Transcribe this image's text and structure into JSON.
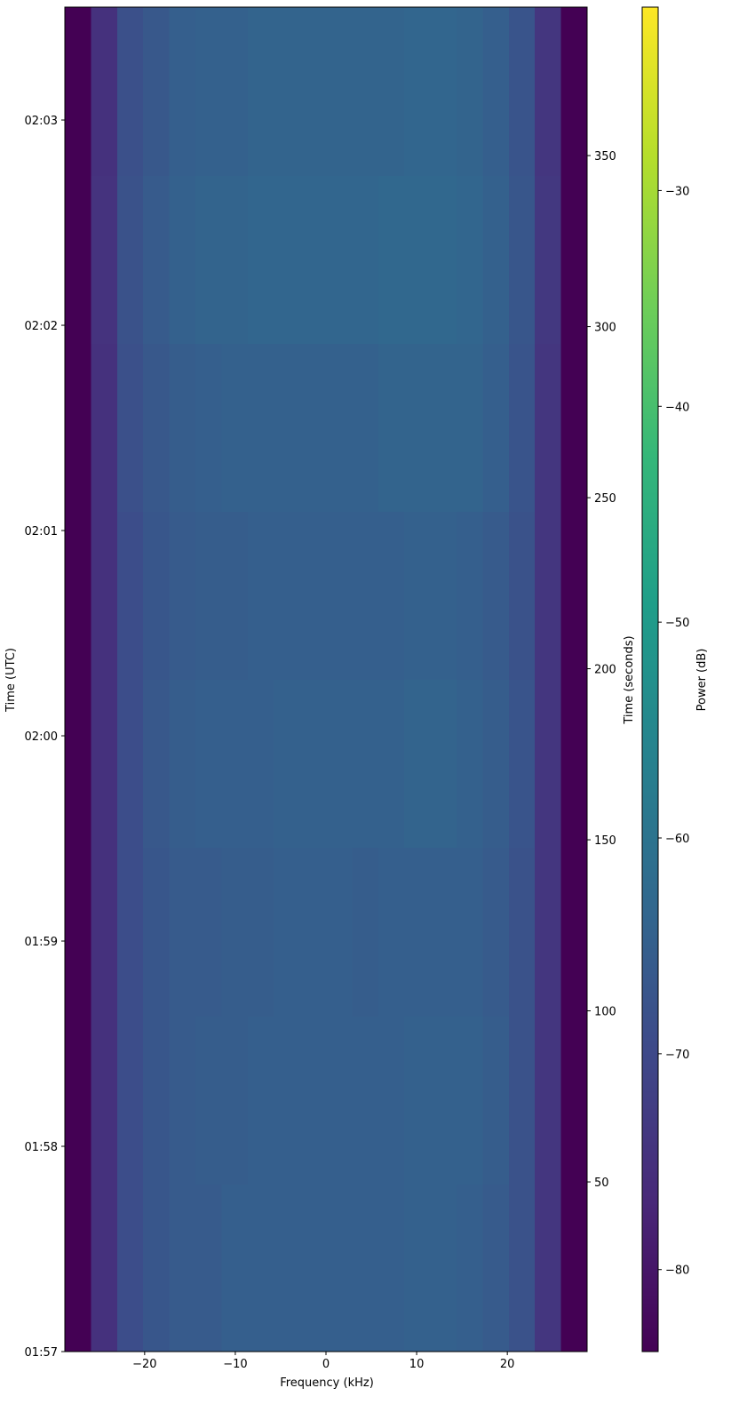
{
  "chart_data": {
    "type": "heatmap",
    "colormap": "viridis",
    "xlabel": "Frequency (kHz)",
    "ylabel": "Time (UTC)",
    "y2label": "Time (seconds)",
    "colorbar_label": "Power (dB)",
    "x": [
      -27.36,
      -24.48,
      -21.6,
      -18.72,
      -15.84,
      -12.96,
      -10.08,
      -7.2,
      -4.32,
      -1.44,
      1.44,
      4.32,
      7.2,
      10.08,
      12.96,
      15.84,
      18.72,
      21.6,
      24.48,
      27.36
    ],
    "y": [
      24.6,
      73.7,
      122.8,
      171.9,
      221,
      270.1,
      319.2,
      368.3
    ],
    "z": [
      [
        -84,
        -75,
        -69,
        -67,
        -66,
        -66,
        -65,
        -65,
        -65,
        -65,
        -65,
        -65,
        -65,
        -64.5,
        -64.5,
        -65,
        -66,
        -68,
        -74,
        -84
      ],
      [
        -84,
        -75,
        -69,
        -67,
        -66,
        -65.5,
        -65.5,
        -65,
        -65,
        -65,
        -65,
        -65,
        -65,
        -64.5,
        -64.5,
        -64.5,
        -65.5,
        -68,
        -74,
        -84
      ],
      [
        -84,
        -75,
        -69,
        -67,
        -66,
        -66,
        -65.5,
        -65.5,
        -65,
        -65,
        -65,
        -65.5,
        -65,
        -65,
        -65,
        -65,
        -66,
        -68,
        -74,
        -84
      ],
      [
        -84,
        -75,
        -69,
        -66.5,
        -65.5,
        -65,
        -65,
        -65,
        -64.5,
        -64.5,
        -64.5,
        -64.5,
        -64.5,
        -64,
        -64,
        -64.5,
        -65.5,
        -67.5,
        -74,
        -84
      ],
      [
        -84,
        -75,
        -69,
        -67,
        -66,
        -65.5,
        -65.5,
        -65,
        -65,
        -65,
        -65,
        -65,
        -65,
        -64.5,
        -64.5,
        -65,
        -66,
        -68,
        -74,
        -84
      ],
      [
        -84,
        -75,
        -68.5,
        -66.5,
        -65.5,
        -65,
        -64.5,
        -64.5,
        -64.5,
        -64.5,
        -64.5,
        -64.5,
        -64,
        -64,
        -64,
        -64,
        -65,
        -67.5,
        -74,
        -84
      ],
      [
        -84,
        -74.5,
        -68,
        -66,
        -64.5,
        -64,
        -64,
        -63.5,
        -63.5,
        -63.5,
        -63.5,
        -63.5,
        -63,
        -63,
        -63,
        -63.5,
        -64.5,
        -67,
        -73.5,
        -84
      ],
      [
        -84,
        -75,
        -68.5,
        -66.5,
        -65,
        -64.5,
        -64.5,
        -64,
        -64,
        -64,
        -64,
        -64,
        -64,
        -63.5,
        -63.5,
        -64,
        -65,
        -67.5,
        -74,
        -84
      ]
    ],
    "xlim": [
      -28.8,
      28.8
    ],
    "xticks": [
      {
        "value": -20,
        "label": "−20"
      },
      {
        "value": -10,
        "label": "−10"
      },
      0,
      10,
      20
    ],
    "ylim": [
      0,
      393
    ],
    "yticks": [
      {
        "value": 0,
        "label": "01:57"
      },
      {
        "value": 60,
        "label": "01:58"
      },
      {
        "value": 120,
        "label": "01:59"
      },
      {
        "value": 180,
        "label": "02:00"
      },
      {
        "value": 240,
        "label": "02:01"
      },
      {
        "value": 300,
        "label": "02:02"
      },
      {
        "value": 360,
        "label": "02:03"
      }
    ],
    "y2lim": [
      0.4,
      393.4
    ],
    "y2ticks": [
      50,
      100,
      150,
      200,
      250,
      300,
      350
    ],
    "clim": [
      -83.8,
      -21.5
    ],
    "cticks": [
      {
        "value": -80,
        "label": "−80"
      },
      {
        "value": -70,
        "label": "−70"
      },
      {
        "value": -60,
        "label": "−60"
      },
      {
        "value": -50,
        "label": "−50"
      },
      {
        "value": -40,
        "label": "−40"
      },
      {
        "value": -30,
        "label": "−30"
      }
    ]
  }
}
